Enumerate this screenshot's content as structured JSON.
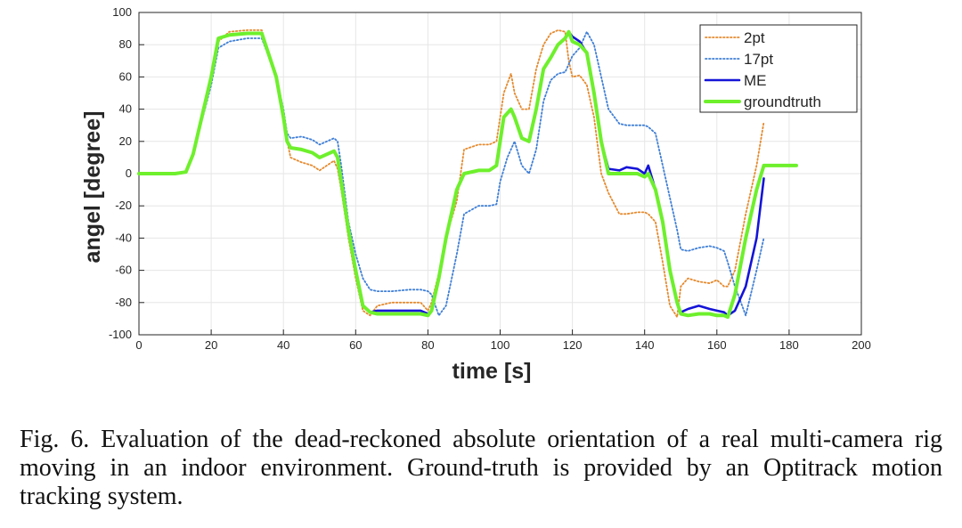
{
  "caption": "Fig. 6.   Evaluation of the dead-reckoned absolute orientation of a real multi-camera rig moving in an indoor environment. Ground-truth is provided by an Optitrack motion tracking system.",
  "colors": {
    "2pt": "#e58a2e",
    "17pt": "#3f7fd6",
    "ME": "#1414d8",
    "groundtruth": "#6ef02c",
    "grid": "#e6e6e6",
    "axis": "#262626"
  },
  "chart_data": {
    "type": "line",
    "title": "",
    "xlabel": "time [s]",
    "ylabel": "angel [degree]",
    "xlim": [
      0,
      200
    ],
    "ylim": [
      -100,
      100
    ],
    "xticks": [
      0,
      20,
      40,
      60,
      80,
      100,
      120,
      140,
      160,
      180,
      200
    ],
    "yticks": [
      -100,
      -80,
      -60,
      -40,
      -20,
      0,
      20,
      40,
      60,
      80,
      100
    ],
    "grid": true,
    "legend_position": "top-right",
    "series": [
      {
        "name": "2pt",
        "style": "dotted",
        "x": [
          0,
          5,
          10,
          13,
          15,
          20,
          22,
          25,
          30,
          34,
          38,
          40,
          41,
          42,
          45,
          48,
          50,
          52,
          54,
          55,
          56,
          58,
          60,
          62,
          64,
          66,
          70,
          75,
          78,
          80,
          81,
          83,
          85,
          88,
          90,
          94,
          97,
          99,
          101,
          103,
          104,
          106,
          108,
          110,
          112,
          114,
          116,
          118,
          119,
          120,
          122,
          124,
          126,
          128,
          130,
          133,
          135,
          138,
          140,
          141,
          143,
          145,
          147,
          149,
          150,
          152,
          155,
          158,
          160,
          162,
          163,
          165,
          168,
          171,
          173
        ],
        "y": [
          0,
          0,
          0,
          1,
          12,
          60,
          82,
          88,
          89,
          89,
          60,
          35,
          20,
          10,
          7,
          5,
          2,
          5,
          8,
          3,
          -10,
          -40,
          -65,
          -85,
          -88,
          -82,
          -80,
          -80,
          -80,
          -85,
          -80,
          -62,
          -40,
          -17,
          15,
          18,
          18,
          20,
          50,
          62,
          50,
          40,
          40,
          65,
          80,
          87,
          89,
          88,
          70,
          60,
          61,
          55,
          35,
          0,
          -12,
          -25,
          -25,
          -24,
          -24,
          -25,
          -30,
          -55,
          -82,
          -89,
          -70,
          -65,
          -67,
          -68,
          -66,
          -70,
          -70,
          -60,
          -25,
          5,
          32
        ]
      },
      {
        "name": "17pt",
        "style": "dotted",
        "x": [
          0,
          5,
          10,
          13,
          15,
          20,
          22,
          25,
          30,
          34,
          38,
          40,
          41,
          42,
          45,
          48,
          50,
          52,
          54,
          55,
          56,
          58,
          60,
          62,
          64,
          66,
          70,
          75,
          78,
          80,
          81,
          83,
          85,
          88,
          90,
          94,
          97,
          99,
          100,
          102,
          104,
          106,
          108,
          110,
          112,
          114,
          116,
          118,
          120,
          122,
          124,
          126,
          128,
          130,
          133,
          135,
          138,
          140,
          141,
          143,
          145,
          147,
          149,
          150,
          152,
          155,
          158,
          160,
          162,
          163,
          165,
          168,
          171,
          173
        ],
        "y": [
          0,
          0,
          0,
          1,
          12,
          55,
          78,
          82,
          84,
          84,
          60,
          40,
          25,
          22,
          23,
          21,
          18,
          20,
          22,
          20,
          5,
          -30,
          -50,
          -65,
          -72,
          -73,
          -73,
          -72,
          -72,
          -73,
          -75,
          -88,
          -82,
          -50,
          -25,
          -20,
          -20,
          -19,
          -5,
          10,
          20,
          5,
          0,
          15,
          45,
          58,
          62,
          63,
          73,
          78,
          88,
          80,
          60,
          40,
          31,
          30,
          30,
          30,
          29,
          25,
          5,
          -15,
          -35,
          -47,
          -48,
          -46,
          -45,
          -46,
          -48,
          -55,
          -70,
          -88,
          -60,
          -40
        ]
      },
      {
        "name": "ME",
        "style": "solid",
        "x": [
          0,
          5,
          10,
          13,
          15,
          20,
          22,
          25,
          30,
          34,
          38,
          40,
          41,
          42,
          45,
          48,
          50,
          52,
          54,
          55,
          56,
          58,
          60,
          62,
          64,
          66,
          70,
          75,
          78,
          80,
          81,
          83,
          85,
          88,
          90,
          94,
          97,
          99,
          101,
          103,
          104,
          106,
          108,
          110,
          112,
          114,
          116,
          118,
          119,
          120,
          122,
          124,
          126,
          128,
          130,
          133,
          135,
          138,
          140,
          141,
          143,
          145,
          147,
          149,
          150,
          152,
          155,
          158,
          160,
          162,
          163,
          165,
          168,
          171,
          173
        ],
        "y": [
          0,
          0,
          0,
          1,
          12,
          60,
          84,
          86,
          87,
          87,
          60,
          35,
          20,
          16,
          15,
          13,
          10,
          12,
          14,
          10,
          -5,
          -35,
          -60,
          -82,
          -86,
          -85,
          -85,
          -85,
          -85,
          -87,
          -85,
          -65,
          -40,
          -10,
          0,
          2,
          2,
          5,
          35,
          40,
          35,
          22,
          20,
          40,
          65,
          72,
          80,
          84,
          88,
          85,
          82,
          75,
          50,
          20,
          3,
          2,
          4,
          3,
          0,
          5,
          -10,
          -30,
          -60,
          -80,
          -86,
          -84,
          -82,
          -84,
          -85,
          -86,
          -88,
          -85,
          -70,
          -40,
          -3
        ]
      },
      {
        "name": "groundtruth",
        "style": "solid",
        "x": [
          0,
          5,
          10,
          13,
          15,
          20,
          22,
          25,
          30,
          34,
          38,
          40,
          41,
          42,
          45,
          48,
          50,
          52,
          54,
          55,
          56,
          58,
          60,
          62,
          64,
          66,
          70,
          75,
          78,
          80,
          81,
          83,
          85,
          88,
          90,
          94,
          97,
          99,
          101,
          103,
          104,
          106,
          108,
          110,
          112,
          114,
          116,
          118,
          119,
          120,
          122,
          124,
          126,
          128,
          130,
          133,
          135,
          138,
          140,
          141,
          143,
          145,
          147,
          149,
          150,
          152,
          155,
          158,
          160,
          162,
          163,
          165,
          168,
          171,
          173,
          174,
          176,
          178,
          180,
          182
        ],
        "y": [
          0,
          0,
          0,
          1,
          12,
          60,
          84,
          86,
          87,
          87,
          60,
          35,
          20,
          16,
          15,
          13,
          10,
          12,
          14,
          10,
          -5,
          -35,
          -60,
          -82,
          -86,
          -87,
          -87,
          -87,
          -87,
          -88,
          -85,
          -65,
          -40,
          -10,
          0,
          2,
          2,
          5,
          35,
          40,
          35,
          22,
          20,
          40,
          65,
          72,
          80,
          84,
          88,
          82,
          80,
          75,
          50,
          20,
          0,
          0,
          0,
          0,
          -2,
          0,
          -10,
          -30,
          -60,
          -80,
          -87,
          -88,
          -87,
          -87,
          -88,
          -88,
          -89,
          -75,
          -40,
          -10,
          5,
          5,
          5,
          5,
          5,
          5
        ]
      }
    ]
  }
}
